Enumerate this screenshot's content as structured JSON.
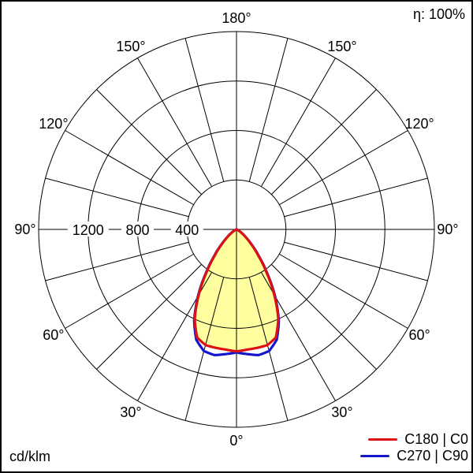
{
  "chart_data": {
    "type": "polar-photometric",
    "efficiency_label": "η: 100%",
    "unit_label": "cd/klm",
    "radial_ticks": [
      400,
      800,
      1200
    ],
    "radial_max": 1600,
    "angle_step_deg": 15,
    "angle_labels_deg": [
      0,
      30,
      60,
      90,
      120,
      150,
      180
    ],
    "degree_suffix": "°",
    "gamma_deg": [
      0,
      5,
      10,
      15,
      20,
      25,
      30,
      35,
      40,
      45,
      50,
      55,
      60,
      65,
      70,
      75,
      80,
      85,
      90
    ],
    "series": [
      {
        "name": "C180 | C0",
        "color": "#dd1111",
        "values": [
          986,
          976,
          972,
          968,
          930,
          800,
          610,
          420,
          270,
          165,
          95,
          50,
          22,
          8,
          2,
          0,
          0,
          0,
          0
        ]
      },
      {
        "name": "C270 | C90",
        "color": "#1515cc",
        "values": [
          995,
          1012,
          1032,
          1018,
          950,
          810,
          622,
          432,
          280,
          172,
          100,
          54,
          25,
          9,
          2,
          0,
          0,
          0,
          0
        ]
      }
    ],
    "fill_series": 0,
    "fill_color": "#ffffa0",
    "grid_color": "#000000",
    "legend_position": "bottom-right"
  }
}
